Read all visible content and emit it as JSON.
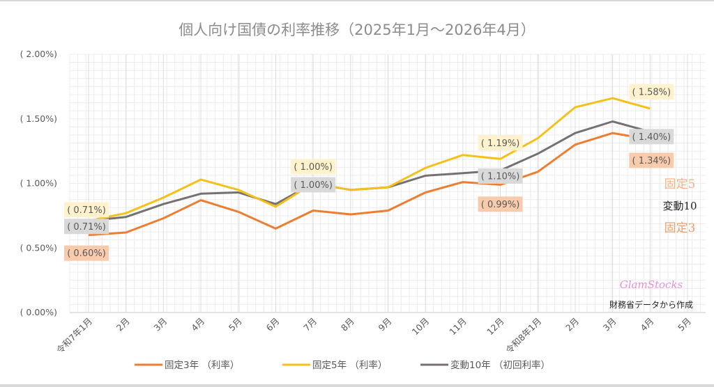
{
  "chart_data": {
    "type": "line",
    "title": "個人向け国債の利率推移（2025年1月～2026年4月）",
    "xlabel": "",
    "ylabel": "",
    "ylim": [
      0,
      2.0
    ],
    "yticks": [
      0,
      0.5,
      1.0,
      1.5,
      2.0
    ],
    "ytick_labels": [
      "( 0.00%)",
      "( 0.50%)",
      "( 1.00%)",
      "( 1.50%)",
      "( 2.00%)"
    ],
    "grid": true,
    "categories": [
      "令和7年1月",
      "2月",
      "3月",
      "4月",
      "5月",
      "6月",
      "7月",
      "8月",
      "9月",
      "10月",
      "11月",
      "12月",
      "令和8年1月",
      "2月",
      "3月",
      "4月",
      "5月"
    ],
    "series": [
      {
        "name": "固定3年 （利率）",
        "color": "#ed7d31",
        "values": [
          0.6,
          0.62,
          0.73,
          0.87,
          0.78,
          0.65,
          0.79,
          0.76,
          0.79,
          0.93,
          1.01,
          0.99,
          1.09,
          1.3,
          1.39,
          1.34,
          null
        ]
      },
      {
        "name": "固定5年 （利率）",
        "color": "#f5c018",
        "values": [
          0.71,
          0.77,
          0.89,
          1.03,
          0.95,
          0.82,
          1.0,
          0.95,
          0.97,
          1.12,
          1.22,
          1.19,
          1.35,
          1.59,
          1.66,
          1.58,
          null
        ]
      },
      {
        "name": "変動10年 （初回利率）",
        "color": "#767171",
        "values": [
          0.71,
          0.74,
          0.84,
          0.92,
          0.93,
          0.84,
          1.0,
          0.95,
          0.97,
          1.06,
          1.08,
          1.1,
          1.23,
          1.39,
          1.48,
          1.4,
          null
        ]
      }
    ],
    "data_labels": [
      {
        "series": 1,
        "index": 0,
        "text": "( 0.71%)",
        "bg": "#fff2cc"
      },
      {
        "series": 2,
        "index": 0,
        "text": "( 0.71%)",
        "bg": "#d9d9d9"
      },
      {
        "series": 0,
        "index": 0,
        "text": "( 0.60%)",
        "bg": "#f8cbad"
      },
      {
        "series": 1,
        "index": 6,
        "text": "( 1.00%)",
        "bg": "#fff2cc"
      },
      {
        "series": 2,
        "index": 6,
        "text": "( 1.00%)",
        "bg": "#d9d9d9"
      },
      {
        "series": 1,
        "index": 11,
        "text": "( 1.19%)",
        "bg": "#fff2cc"
      },
      {
        "series": 2,
        "index": 11,
        "text": "( 1.10%)",
        "bg": "#d9d9d9"
      },
      {
        "series": 0,
        "index": 11,
        "text": "( 0.99%)",
        "bg": "#f8cbad"
      },
      {
        "series": 1,
        "index": 15,
        "text": "( 1.58%)",
        "bg": "#fff2cc"
      },
      {
        "series": 2,
        "index": 15,
        "text": "( 1.40%)",
        "bg": "#d9d9d9"
      },
      {
        "series": 0,
        "index": 15,
        "text": "( 1.34%)",
        "bg": "#f8cbad"
      }
    ],
    "legend_position": "bottom",
    "annotations": {
      "series_tags": [
        {
          "text": "固定5",
          "color": "#f4b183"
        },
        {
          "text": "変動10",
          "color": "#222222"
        },
        {
          "text": "固定3",
          "color": "#e9a06b"
        }
      ],
      "brand": {
        "text": "GlamStocks",
        "color": "#e98fd6"
      },
      "source": "財務省データから作成"
    }
  }
}
